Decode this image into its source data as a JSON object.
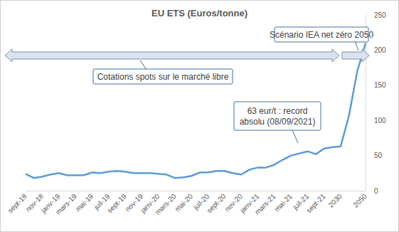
{
  "chart_data": {
    "type": "line",
    "title": "EU ETS (Euros/tonne)",
    "categories": [
      "sept-18",
      null,
      "nov-18",
      null,
      "janv-19",
      null,
      "mars-19",
      null,
      "mai-19",
      null,
      "juil-19",
      null,
      "sept-19",
      null,
      "nov-19",
      null,
      "janv-20",
      null,
      "mars-20",
      null,
      "mai-20",
      null,
      "juil-20",
      null,
      "sept-20",
      null,
      "nov-20",
      null,
      "janv-21",
      null,
      "mars-21",
      null,
      "mai-21",
      null,
      "juil-21",
      null,
      "sept-21",
      null,
      "2030",
      null,
      null,
      "2050"
    ],
    "values": [
      24,
      18,
      20,
      23,
      25,
      22,
      22,
      22,
      26,
      25,
      27,
      28,
      27,
      25,
      25,
      25,
      24,
      23,
      18,
      19,
      21,
      26,
      26,
      28,
      28,
      25,
      23,
      30,
      33,
      33,
      37,
      44,
      50,
      53,
      56,
      52,
      60,
      62,
      63,
      107,
      170,
      210
    ],
    "color": "#5b9bd5",
    "ylim": [
      0,
      250
    ],
    "yticks": [
      0,
      50,
      100,
      150,
      200,
      250
    ],
    "grid": false,
    "annotations": [
      "Scénario IEA net zéro 2050",
      "Cotations spots sur le marché libre",
      "63 eur/t : record\nabsolu (08/09/2021)"
    ]
  }
}
